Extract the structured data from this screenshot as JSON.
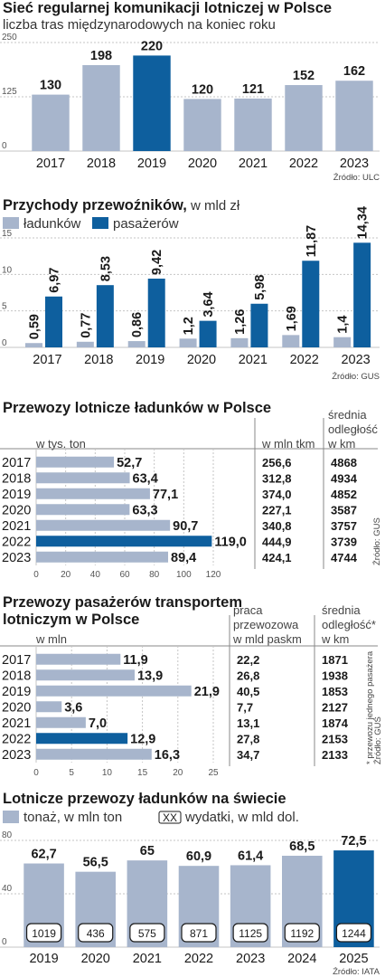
{
  "colors": {
    "light": "#a7b5cc",
    "dark": "#0e5f9e",
    "grid": "#c5c5c5"
  },
  "section1": {
    "title": "Sieć regularnej komunikacji lotniczej w Polsce",
    "subtitle": "liczba tras międzynarodowych na koniec roku",
    "source": "Źródło: ULC"
  },
  "section2": {
    "title": "Przychody przewoźników,",
    "title_unit": " w mld zł",
    "source": "Źródło: GUS"
  },
  "section3": {
    "title": "Przewozy lotnicze ładunków w Polsce",
    "col_bar": "w tys. ton",
    "col_a": "w mln tkm",
    "col_b": [
      "średnia",
      "odległość",
      "w km"
    ],
    "col_a_values": [
      "256,6",
      "312,8",
      "374,0",
      "227,1",
      "340,8",
      "444,9",
      "424,1"
    ],
    "col_b_values": [
      "4868",
      "4934",
      "4852",
      "3587",
      "3757",
      "3739",
      "4744"
    ],
    "source": "Źródło: GUS"
  },
  "section4": {
    "title": [
      "Przewozy pasażerów transportem",
      "lotniczym w Polsce"
    ],
    "col_bar": "w mln",
    "col_a": [
      "praca",
      "przewozowa",
      "w mld paskm"
    ],
    "col_b": [
      "średnia",
      "odległość*",
      "w km"
    ],
    "col_a_values": [
      "22,2",
      "26,8",
      "40,5",
      "7,7",
      "13,1",
      "27,8",
      "34,7"
    ],
    "col_b_values": [
      "1871",
      "1938",
      "1853",
      "2127",
      "1874",
      "2153",
      "2133"
    ],
    "footnote": "* przewozu jednego pasażera",
    "source": "Źródło: GUS"
  },
  "section5": {
    "title": "Lotnicze przewozy ładunków na świecie",
    "source": "Źródło: IATA"
  },
  "chart_data": [
    {
      "type": "bar",
      "title": "Sieć regularnej komunikacji lotniczej w Polsce",
      "subtitle": "liczba tras międzynarodowych na koniec roku",
      "categories": [
        "2017",
        "2018",
        "2019",
        "2020",
        "2021",
        "2022",
        "2023"
      ],
      "values": [
        130,
        198,
        220,
        120,
        121,
        152,
        162
      ],
      "labels": [
        "130",
        "198",
        "220",
        "120",
        "121",
        "152",
        "162"
      ],
      "highlight": "2019",
      "ylim": [
        0,
        250
      ],
      "yticks": [
        "0",
        "125",
        "250"
      ],
      "grid": true
    },
    {
      "type": "bar",
      "title": "Przychody przewoźników, w mld zł",
      "categories": [
        "2017",
        "2018",
        "2019",
        "2020",
        "2021",
        "2022",
        "2023"
      ],
      "series": [
        {
          "name": "ładunków",
          "values": [
            0.59,
            0.77,
            0.86,
            1.2,
            1.26,
            1.69,
            1.4
          ],
          "labels": [
            "0,59",
            "0,77",
            "0,86",
            "1,2",
            "1,26",
            "1,69",
            "1,4"
          ]
        },
        {
          "name": "pasażerów",
          "values": [
            6.97,
            8.53,
            9.42,
            3.64,
            5.98,
            11.87,
            14.34
          ],
          "labels": [
            "6,97",
            "8,53",
            "9,42",
            "3,64",
            "5,98",
            "11,87",
            "14,34"
          ]
        }
      ],
      "ylim": [
        0,
        15
      ],
      "yticks": [
        "0",
        "5",
        "10",
        "15"
      ],
      "legend": "top-left",
      "grid": true
    },
    {
      "type": "bar",
      "orientation": "horizontal",
      "title": "Przewozy lotnicze ładunków w Polsce",
      "categories": [
        "2017",
        "2018",
        "2019",
        "2020",
        "2021",
        "2022",
        "2023"
      ],
      "values": [
        52.7,
        63.4,
        77.1,
        63.3,
        90.7,
        119.0,
        89.4
      ],
      "labels": [
        "52,7",
        "63,4",
        "77,1",
        "63,3",
        "90,7",
        "119,0",
        "89,4"
      ],
      "highlight": "2022",
      "xlim": [
        0,
        120
      ],
      "xticks": [
        "0",
        "20",
        "40",
        "60",
        "80",
        "100",
        "120"
      ],
      "grid": true
    },
    {
      "type": "bar",
      "orientation": "horizontal",
      "title": "Przewozy pasażerów transportem lotniczym w Polsce",
      "categories": [
        "2017",
        "2018",
        "2019",
        "2020",
        "2021",
        "2022",
        "2023"
      ],
      "values": [
        11.9,
        13.9,
        21.9,
        3.6,
        7.0,
        12.9,
        16.3
      ],
      "labels": [
        "11,9",
        "13,9",
        "21,9",
        "3,6",
        "7,0",
        "12,9",
        "16,3"
      ],
      "highlight": "2022",
      "xlim": [
        0,
        25
      ],
      "xticks": [
        "0",
        "5",
        "10",
        "15",
        "20",
        "25"
      ],
      "grid": true
    },
    {
      "type": "bar",
      "title": "Lotnicze przewozy ładunków na świecie",
      "categories": [
        "2019",
        "2020",
        "2021",
        "2022",
        "2023",
        "2024",
        "2025"
      ],
      "series": [
        {
          "name": "tonaż, w mln ton",
          "values": [
            62.7,
            56.5,
            65,
            60.9,
            61.4,
            68.5,
            72.5
          ],
          "labels": [
            "62,7",
            "56,5",
            "65",
            "60,9",
            "61,4",
            "68,5",
            "72,5"
          ]
        },
        {
          "name": "wydatki, w mld dol.",
          "values": [
            1019,
            436,
            575,
            871,
            1125,
            1192,
            1244
          ],
          "labels": [
            "1019",
            "436",
            "575",
            "871",
            "1125",
            "1192",
            "1244"
          ]
        }
      ],
      "legend_box_symbol": "XX",
      "highlight": "2025",
      "ylim": [
        0,
        80
      ],
      "yticks": [
        "0",
        "40",
        "80"
      ],
      "grid": true
    }
  ]
}
